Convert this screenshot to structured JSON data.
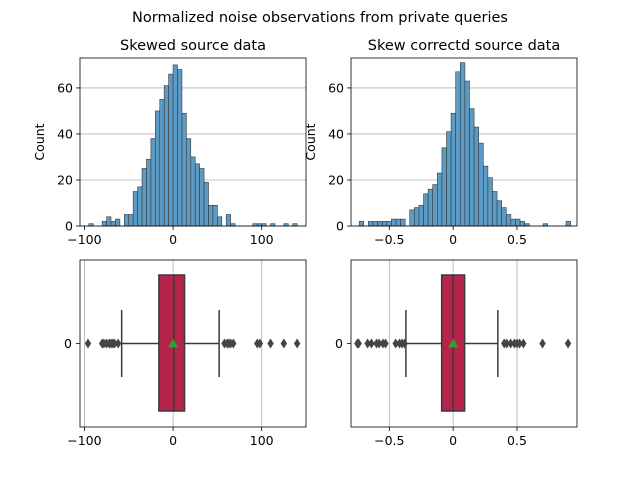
{
  "figure": {
    "suptitle": "Normalized noise observations from private queries"
  },
  "colors": {
    "hist_fill": "#5b9bc6",
    "hist_edge": "#3a3a3a",
    "box_fill": "#b5244a",
    "box_edge": "#3a3a3a",
    "mean_marker": "#2ca02c",
    "grid": "#b0b0b0",
    "outlier": "#444444"
  },
  "chart_data": [
    {
      "type": "bar",
      "subtype": "histogram",
      "title": "Skewed source data",
      "xlabel": "",
      "ylabel": "Count",
      "xlim": [
        -105,
        150
      ],
      "ylim": [
        0,
        73
      ],
      "xticks": [
        -100,
        0,
        100
      ],
      "yticks": [
        0,
        20,
        40,
        60
      ],
      "grid": "y",
      "bin_width": 5,
      "bins": [
        [
          -95,
          1
        ],
        [
          -80,
          2
        ],
        [
          -75,
          4
        ],
        [
          -70,
          2
        ],
        [
          -65,
          3
        ],
        [
          -60,
          0
        ],
        [
          -55,
          5
        ],
        [
          -50,
          5
        ],
        [
          -45,
          15
        ],
        [
          -40,
          17
        ],
        [
          -35,
          25
        ],
        [
          -30,
          29
        ],
        [
          -25,
          38
        ],
        [
          -20,
          50
        ],
        [
          -15,
          55
        ],
        [
          -10,
          61
        ],
        [
          -5,
          66
        ],
        [
          0,
          70
        ],
        [
          5,
          68
        ],
        [
          10,
          49
        ],
        [
          15,
          38
        ],
        [
          20,
          30
        ],
        [
          25,
          27
        ],
        [
          30,
          25
        ],
        [
          35,
          19
        ],
        [
          40,
          9
        ],
        [
          45,
          9
        ],
        [
          50,
          4
        ],
        [
          55,
          0
        ],
        [
          60,
          5
        ],
        [
          65,
          1
        ],
        [
          90,
          1
        ],
        [
          95,
          1
        ],
        [
          100,
          1
        ],
        [
          110,
          1
        ],
        [
          125,
          1
        ],
        [
          135,
          1
        ]
      ]
    },
    {
      "type": "bar",
      "subtype": "histogram",
      "title": "Skew correctd source data",
      "xlabel": "",
      "ylabel": "Count",
      "xlim": [
        -0.8,
        0.97
      ],
      "ylim": [
        0,
        73
      ],
      "xticks": [
        -0.5,
        0.0,
        0.5
      ],
      "yticks": [
        0,
        20,
        40,
        60
      ],
      "grid": "y",
      "bin_width": 0.036,
      "bins": [
        [
          -0.736,
          2
        ],
        [
          -0.664,
          2
        ],
        [
          -0.628,
          2
        ],
        [
          -0.592,
          2
        ],
        [
          -0.556,
          2
        ],
        [
          -0.52,
          2
        ],
        [
          -0.484,
          3
        ],
        [
          -0.448,
          3
        ],
        [
          -0.412,
          3
        ],
        [
          -0.34,
          7
        ],
        [
          -0.304,
          8
        ],
        [
          -0.268,
          9
        ],
        [
          -0.232,
          14
        ],
        [
          -0.196,
          16
        ],
        [
          -0.16,
          18
        ],
        [
          -0.124,
          23
        ],
        [
          -0.088,
          34
        ],
        [
          -0.052,
          41
        ],
        [
          -0.016,
          49
        ],
        [
          0.02,
          67
        ],
        [
          0.056,
          71
        ],
        [
          0.092,
          63
        ],
        [
          0.128,
          51
        ],
        [
          0.164,
          43
        ],
        [
          0.2,
          36
        ],
        [
          0.236,
          26
        ],
        [
          0.272,
          21
        ],
        [
          0.308,
          15
        ],
        [
          0.344,
          11
        ],
        [
          0.38,
          8
        ],
        [
          0.416,
          5
        ],
        [
          0.452,
          3
        ],
        [
          0.488,
          3
        ],
        [
          0.524,
          2
        ],
        [
          0.56,
          1
        ],
        [
          0.704,
          1
        ],
        [
          0.884,
          2
        ]
      ]
    },
    {
      "type": "box",
      "title": "",
      "xlim": [
        -105,
        150
      ],
      "xticks": [
        -100,
        0,
        100
      ],
      "ytick_label": "0",
      "grid": "x",
      "box": {
        "whisker_low": -58,
        "q1": -16,
        "median": 1,
        "q3": 13,
        "whisker_high": 52,
        "mean": 0
      },
      "outliers": [
        -96,
        -80,
        -78,
        -75,
        -72,
        -70,
        -68,
        -66,
        -62,
        58,
        61,
        63,
        65,
        68,
        95,
        98,
        110,
        125,
        140
      ]
    },
    {
      "type": "box",
      "title": "",
      "xlim": [
        -0.8,
        0.97
      ],
      "xticks": [
        -0.5,
        0.0,
        0.5
      ],
      "ytick_label": "0",
      "grid": "x",
      "box": {
        "whisker_low": -0.37,
        "q1": -0.09,
        "median": 0.0,
        "q3": 0.09,
        "whisker_high": 0.35,
        "mean": 0.0
      },
      "outliers": [
        -0.75,
        -0.74,
        -0.67,
        -0.64,
        -0.6,
        -0.58,
        -0.55,
        -0.53,
        -0.45,
        -0.42,
        -0.4,
        -0.38,
        0.4,
        0.42,
        0.45,
        0.48,
        0.5,
        0.52,
        0.55,
        0.7,
        0.9
      ]
    }
  ]
}
